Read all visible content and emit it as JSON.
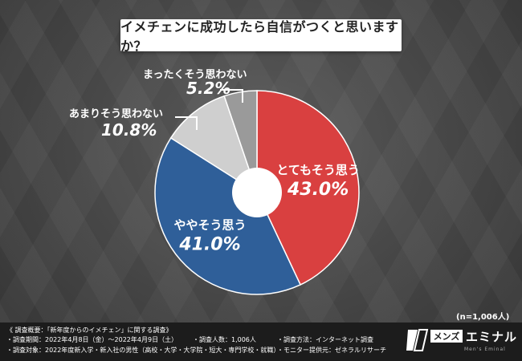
{
  "title": "イメチェンに成功したら自信がつくと思いますか？",
  "sample_note": "(n=1,006人)",
  "chart_data": {
    "type": "pie",
    "donut": true,
    "slices": [
      {
        "label": "とてもそう思う",
        "value": 43.0,
        "display": "43.0%",
        "color": "#d94040"
      },
      {
        "label": "ややそう思う",
        "value": 41.0,
        "display": "41.0%",
        "color": "#2f5f99"
      },
      {
        "label": "あまりそう思わない",
        "value": 10.8,
        "display": "10.8%",
        "color": "#cfcfcf"
      },
      {
        "label": "まったくそう思わない",
        "value": 5.2,
        "display": "5.2%",
        "color": "#9a9a9a"
      }
    ]
  },
  "footer": {
    "survey_title": "《 調査概要：「新年度からのイメチェン」に関する調査》",
    "period": "・調査期間：2022年4月8日（金）〜2022年4月9日（土）",
    "count": "・調査人数：1,006人",
    "method": "・調査方法：インターネット調査",
    "target": "・調査対象：2022年度新入学・新入社の男性（高校・大学・大学院・短大・専門学校・就職）",
    "provider": "・モニター提供元：ゼネラルリサーチ"
  },
  "logo": {
    "brand_box": "メンズ",
    "brand_rest": "エミナル",
    "brand_sub": "Men's Eminal"
  }
}
